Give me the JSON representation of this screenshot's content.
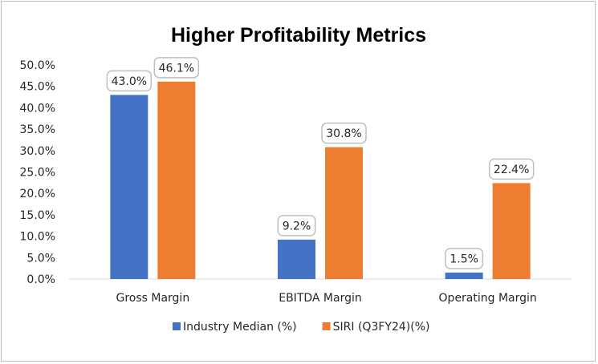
{
  "chart_data": {
    "type": "bar",
    "title": "Higher Profitability Metrics",
    "categories": [
      "Gross Margin",
      "EBITDA Margin",
      "Operating Margin"
    ],
    "series": [
      {
        "name": "Industry Median (%)",
        "values": [
          43.0,
          9.2,
          1.5
        ],
        "color": "#4472c4"
      },
      {
        "name": "SIRI (Q3FY24)(%)",
        "values": [
          46.1,
          30.8,
          22.4
        ],
        "color": "#ed7d31"
      }
    ],
    "y_ticks": [
      "0.0%",
      "5.0%",
      "10.0%",
      "15.0%",
      "20.0%",
      "25.0%",
      "30.0%",
      "35.0%",
      "40.0%",
      "45.0%",
      "50.0%"
    ],
    "ylim": [
      0,
      50
    ],
    "grid": false,
    "legend_position": "bottom",
    "data_label_format": "percent-1dp"
  }
}
